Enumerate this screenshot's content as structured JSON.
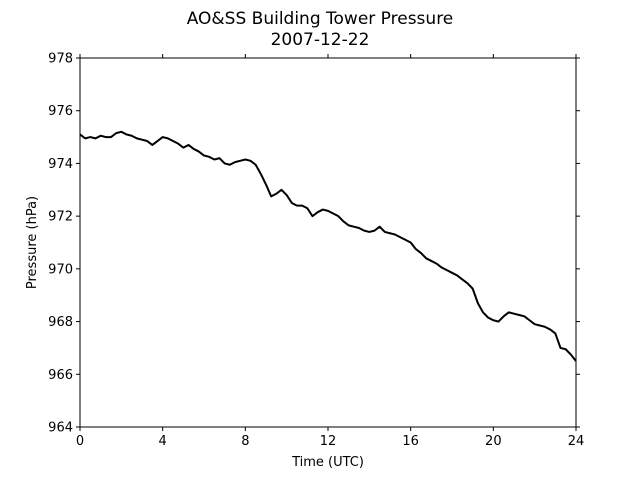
{
  "chart_data": {
    "type": "line",
    "title": "AO&SS Building Tower Pressure",
    "subtitle": "2007-12-22",
    "xlabel": "Time (UTC)",
    "ylabel": "Pressure (hPa)",
    "xlim": [
      0,
      24
    ],
    "ylim": [
      964,
      978
    ],
    "xticks": [
      "0",
      "4",
      "8",
      "12",
      "16",
      "20",
      "24"
    ],
    "yticks": [
      "964",
      "966",
      "968",
      "970",
      "972",
      "974",
      "976",
      "978"
    ],
    "grid": false,
    "legend": "none",
    "series": [
      {
        "color": "#000000",
        "x": [
          0,
          0.25,
          0.5,
          0.75,
          1.0,
          1.25,
          1.5,
          1.75,
          2.0,
          2.25,
          2.5,
          2.75,
          3.0,
          3.25,
          3.5,
          3.75,
          4.0,
          4.25,
          4.5,
          4.75,
          5.0,
          5.25,
          5.5,
          5.75,
          6.0,
          6.25,
          6.5,
          6.75,
          7.0,
          7.25,
          7.5,
          7.75,
          8.0,
          8.25,
          8.5,
          8.75,
          9.0,
          9.25,
          9.5,
          9.75,
          10.0,
          10.25,
          10.5,
          10.75,
          11.0,
          11.25,
          11.5,
          11.75,
          12.0,
          12.25,
          12.5,
          12.75,
          13.0,
          13.25,
          13.5,
          13.75,
          14.0,
          14.25,
          14.5,
          14.75,
          15.0,
          15.25,
          15.5,
          15.75,
          16.0,
          16.25,
          16.5,
          16.75,
          17.0,
          17.25,
          17.5,
          17.75,
          18.0,
          18.25,
          18.5,
          18.75,
          19.0,
          19.25,
          19.5,
          19.75,
          20.0,
          20.25,
          20.5,
          20.75,
          21.0,
          21.25,
          21.5,
          21.75,
          22.0,
          22.25,
          22.5,
          22.75,
          23.0,
          23.25,
          23.5,
          23.75,
          24.0
        ],
        "y": [
          975.1,
          974.95,
          975.0,
          974.95,
          975.05,
          975.0,
          975.0,
          975.15,
          975.2,
          975.1,
          975.05,
          974.95,
          974.9,
          974.85,
          974.7,
          974.85,
          975.0,
          974.95,
          974.85,
          974.75,
          974.6,
          974.7,
          974.55,
          974.45,
          974.3,
          974.25,
          974.15,
          974.2,
          974.0,
          973.95,
          974.05,
          974.1,
          974.15,
          974.1,
          973.95,
          973.6,
          973.2,
          972.75,
          972.85,
          973.0,
          972.8,
          972.5,
          972.4,
          972.4,
          972.3,
          972.0,
          972.15,
          972.25,
          972.2,
          972.1,
          972.0,
          971.8,
          971.65,
          971.6,
          971.55,
          971.45,
          971.4,
          971.45,
          971.6,
          971.4,
          971.35,
          971.3,
          971.2,
          971.1,
          971.0,
          970.75,
          970.6,
          970.4,
          970.3,
          970.2,
          970.05,
          969.95,
          969.85,
          969.75,
          969.6,
          969.45,
          969.25,
          968.7,
          968.35,
          968.15,
          968.05,
          968.0,
          968.2,
          968.35,
          968.3,
          968.25,
          968.2,
          968.05,
          967.9,
          967.85,
          967.8,
          967.7,
          967.55,
          967.0,
          966.95,
          966.75,
          966.5
        ]
      }
    ]
  }
}
